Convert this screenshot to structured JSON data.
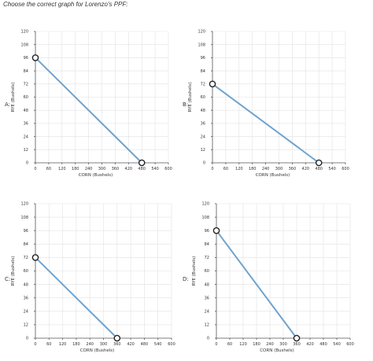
{
  "question": "Choose the correct graph for Lorenzo's PPF:",
  "colors": {
    "line": "#6fa3cf",
    "marker_fill": "#ffffff",
    "marker_stroke": "#222222",
    "grid": "#e2e2e2"
  },
  "chart_data": [
    {
      "type": "line",
      "option": "A:",
      "xlabel": "CORN (Bushels)",
      "ylabel": "RYE (Bushels)",
      "xlim": [
        0,
        600
      ],
      "ylim": [
        0,
        120
      ],
      "xticks": [
        0,
        60,
        120,
        180,
        240,
        300,
        360,
        420,
        480,
        540,
        600
      ],
      "yticks": [
        0,
        12,
        24,
        36,
        48,
        60,
        72,
        84,
        96,
        108,
        120
      ],
      "points": [
        [
          0,
          96
        ],
        [
          480,
          0
        ]
      ],
      "grid": true
    },
    {
      "type": "line",
      "option": "B:",
      "xlabel": "CORN (Bushels)",
      "ylabel": "RYE (Bushels)",
      "xlim": [
        0,
        600
      ],
      "ylim": [
        0,
        120
      ],
      "xticks": [
        0,
        60,
        120,
        180,
        240,
        300,
        360,
        420,
        480,
        540,
        600
      ],
      "yticks": [
        0,
        12,
        24,
        36,
        48,
        60,
        72,
        84,
        96,
        108,
        120
      ],
      "points": [
        [
          0,
          72
        ],
        [
          480,
          0
        ]
      ],
      "grid": true
    },
    {
      "type": "line",
      "option": "C:",
      "xlabel": "CORN (Bushels)",
      "ylabel": "RYE (Bushels)",
      "xlim": [
        0,
        600
      ],
      "ylim": [
        0,
        120
      ],
      "xticks": [
        0,
        60,
        120,
        180,
        240,
        300,
        360,
        420,
        480,
        540,
        600
      ],
      "yticks": [
        0,
        12,
        24,
        36,
        48,
        60,
        72,
        84,
        96,
        108,
        120
      ],
      "points": [
        [
          0,
          72
        ],
        [
          360,
          0
        ]
      ],
      "grid": true
    },
    {
      "type": "line",
      "option": "D:",
      "xlabel": "CORN (Bushels)",
      "ylabel": "RYE (Bushels)",
      "xlim": [
        0,
        600
      ],
      "ylim": [
        0,
        120
      ],
      "xticks": [
        0,
        60,
        120,
        180,
        240,
        300,
        360,
        420,
        480,
        540,
        600
      ],
      "yticks": [
        0,
        12,
        24,
        36,
        48,
        60,
        72,
        84,
        96,
        108,
        120
      ],
      "points": [
        [
          0,
          96
        ],
        [
          360,
          0
        ]
      ],
      "grid": true
    }
  ]
}
